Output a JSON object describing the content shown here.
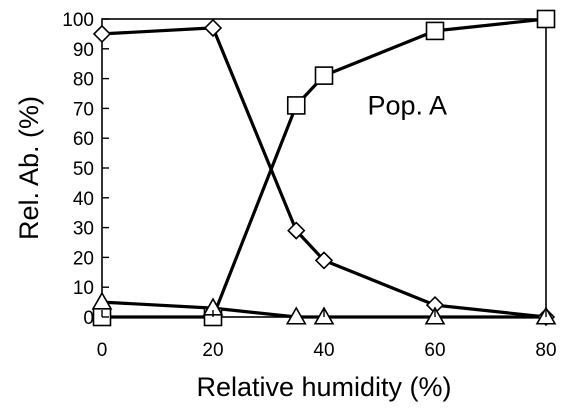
{
  "chart_data": {
    "type": "line",
    "title": "",
    "xlabel": "Relative humidity (%)",
    "ylabel": "Rel. Ab. (%)",
    "xlim": [
      0,
      80
    ],
    "ylim": [
      0,
      100
    ],
    "xticks": [
      0,
      20,
      40,
      60,
      80
    ],
    "yticks": [
      0,
      10,
      20,
      30,
      40,
      50,
      60,
      70,
      80,
      90,
      100
    ],
    "grid": false,
    "legend": "none",
    "annotations": [
      {
        "text": "Pop. A",
        "x": 55,
        "y": 71
      }
    ],
    "series": [
      {
        "marker": "diamond",
        "color": "#000000",
        "points": [
          {
            "x": 0,
            "y": 95
          },
          {
            "x": 20,
            "y": 97
          },
          {
            "x": 35,
            "y": 29
          },
          {
            "x": 40,
            "y": 19
          },
          {
            "x": 60,
            "y": 4
          },
          {
            "x": 80,
            "y": 0
          }
        ]
      },
      {
        "marker": "square",
        "color": "#000000",
        "points": [
          {
            "x": 0,
            "y": 0
          },
          {
            "x": 20,
            "y": 0
          },
          {
            "x": 35,
            "y": 71
          },
          {
            "x": 40,
            "y": 81
          },
          {
            "x": 60,
            "y": 96
          },
          {
            "x": 80,
            "y": 100
          }
        ]
      },
      {
        "marker": "triangle",
        "color": "#000000",
        "points": [
          {
            "x": 0,
            "y": 5
          },
          {
            "x": 20,
            "y": 3
          },
          {
            "x": 35,
            "y": 0
          },
          {
            "x": 40,
            "y": 0
          },
          {
            "x": 60,
            "y": 0
          },
          {
            "x": 80,
            "y": 0
          }
        ]
      }
    ]
  }
}
